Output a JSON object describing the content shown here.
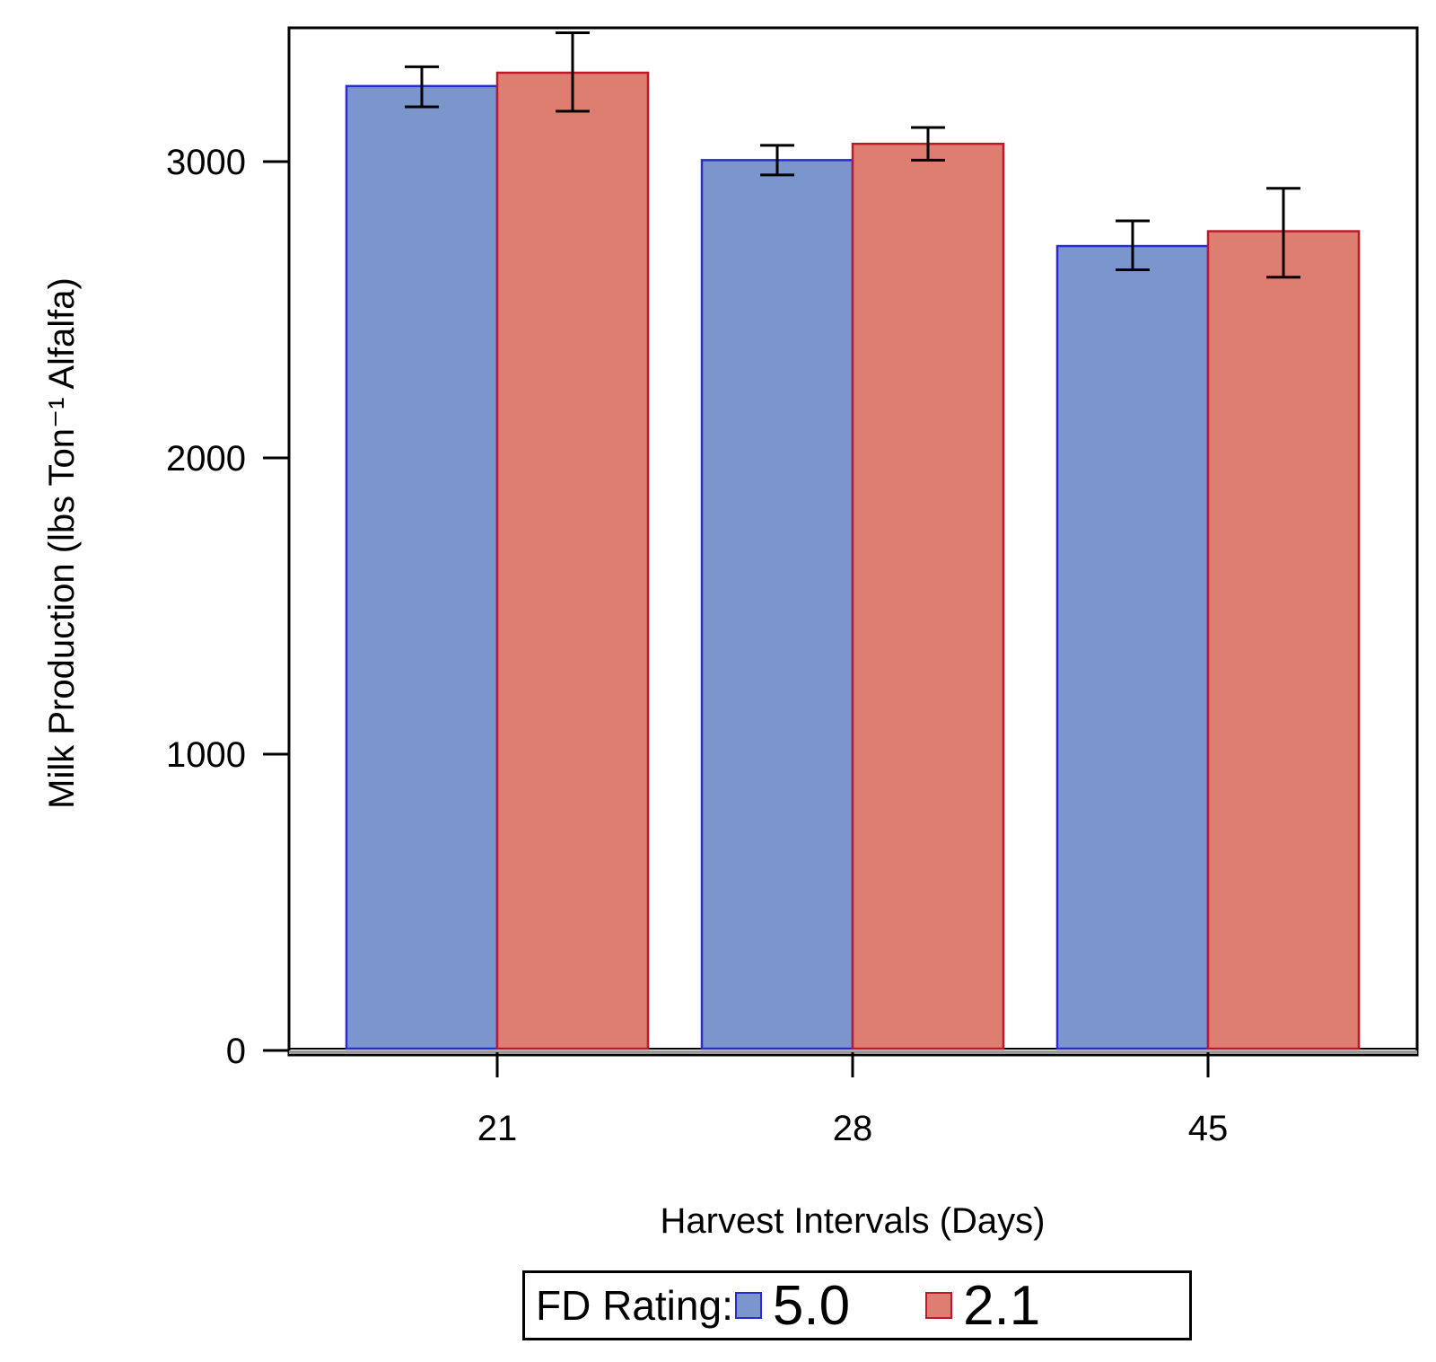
{
  "chart_data": {
    "type": "bar",
    "title": "",
    "xlabel": "Harvest Intervals (Days)",
    "ylabel": "Milk Production (lbs Ton⁻¹ Alfalfa)",
    "categories": [
      "21",
      "28",
      "45"
    ],
    "ylim": [
      0,
      3450
    ],
    "yticks": [
      0,
      1000,
      2000,
      3000
    ],
    "series": [
      {
        "name": "5.0",
        "fill": "#7b96cc",
        "stroke": "#2b2bd6",
        "values": [
          3255,
          3005,
          2715
        ],
        "err_low": [
          3185,
          2955,
          2635
        ],
        "err_high": [
          3320,
          3055,
          2800
        ]
      },
      {
        "name": "2.1",
        "fill": "#de7e71",
        "stroke": "#c0182a",
        "values": [
          3300,
          3060,
          2765
        ],
        "err_low": [
          3170,
          3005,
          2610
        ],
        "err_high": [
          3435,
          3115,
          2910
        ]
      }
    ],
    "legend": {
      "title": "FD Rating:",
      "position": "bottom-center"
    }
  }
}
